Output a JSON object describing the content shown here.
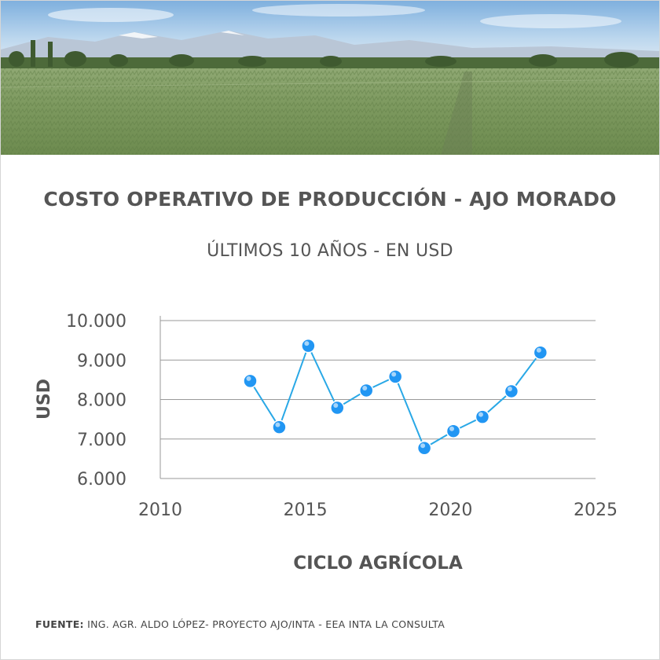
{
  "title": "COSTO OPERATIVO DE PRODUCCIÓN - AJO MORADO",
  "subtitle": "ÚLTIMOS 10 AÑOS - EN USD",
  "source": {
    "label": "FUENTE:",
    "text": "ING. AGR. ALDO LÓPEZ- PROYECTO AJO/INTA - EEA INTA LA CONSULTA"
  },
  "colors": {
    "line": "#29a8e6",
    "marker": "#2196f3",
    "grid": "#999999",
    "text": "#555555"
  },
  "chart_data": {
    "type": "line",
    "xlabel": "CICLO AGRÍCOLA",
    "ylabel": "USD",
    "xlim": [
      2010,
      2025
    ],
    "ylim": [
      6000,
      10000
    ],
    "x_ticks": [
      2010,
      2015,
      2020,
      2025
    ],
    "y_ticks": [
      10000,
      9000,
      8000,
      7000,
      6000
    ],
    "y_tick_labels": [
      "10.000",
      "9.000",
      "8.000",
      "7.000",
      "6.000"
    ],
    "grid": true,
    "x": [
      2013.1,
      2014.1,
      2015.1,
      2016.1,
      2017.1,
      2018.1,
      2019.1,
      2020.1,
      2021.1,
      2022.1,
      2023.1
    ],
    "values": [
      8470,
      7300,
      9360,
      7790,
      8230,
      8580,
      6770,
      7200,
      7560,
      8210,
      9190
    ]
  }
}
